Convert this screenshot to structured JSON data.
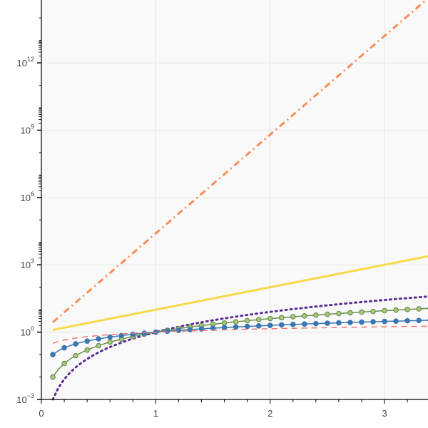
{
  "chart_data": {
    "type": "line",
    "title": "",
    "xlabel": "",
    "ylabel": "",
    "x_scale": "linear",
    "y_scale": "log",
    "xlim": [
      0,
      3.38
    ],
    "ylim_exponents": [
      -3,
      14.8
    ],
    "x_ticks": [
      {
        "value": 0,
        "label": "0"
      },
      {
        "value": 1,
        "label": "1"
      },
      {
        "value": 2,
        "label": "2"
      },
      {
        "value": 3,
        "label": "3"
      }
    ],
    "y_ticks": [
      {
        "exponent": -3,
        "base": "10",
        "exp": "−3"
      },
      {
        "exponent": 0,
        "base": "10",
        "exp": "0"
      },
      {
        "exponent": 3,
        "base": "10",
        "exp": "3"
      },
      {
        "exponent": 6,
        "base": "10",
        "exp": "6"
      },
      {
        "exponent": 9,
        "base": "10",
        "exp": "9"
      },
      {
        "exponent": 12,
        "base": "10",
        "exp": "12"
      }
    ],
    "grid": true,
    "plot_background": "#f9f9f9",
    "grid_color": "#e6e6e6",
    "x_start": 0.1,
    "x_end": 3.4,
    "x_step": 0.05,
    "series": [
      {
        "formula": "exp10",
        "curve": "10^x",
        "color": "#f88d57",
        "style": "dashdot",
        "width": 3,
        "marker": "none"
      },
      {
        "formula": "exp2",
        "curve": "10^(x)",
        "color": "#f9d94a",
        "style": "solid",
        "width": 3,
        "marker": "none"
      },
      {
        "formula": "cube",
        "curve": "x^3",
        "color": "#5a2d91",
        "style": "dotted",
        "width": 3,
        "marker": "none"
      },
      {
        "formula": "sq",
        "curve": "x^2",
        "color": "#6b8e4e",
        "style": "solid",
        "width": 1.5,
        "marker": "open-circle",
        "marker_fill": "#a8c97a"
      },
      {
        "formula": "lin",
        "curve": "x",
        "color": "#3b76b3",
        "style": "solid",
        "width": 1.5,
        "marker": "filled-circle"
      },
      {
        "formula": "sqrt",
        "curve": "sqrt(x)",
        "color": "#ef7771",
        "style": "dashed",
        "width": 1.5,
        "marker": "none"
      }
    ]
  }
}
